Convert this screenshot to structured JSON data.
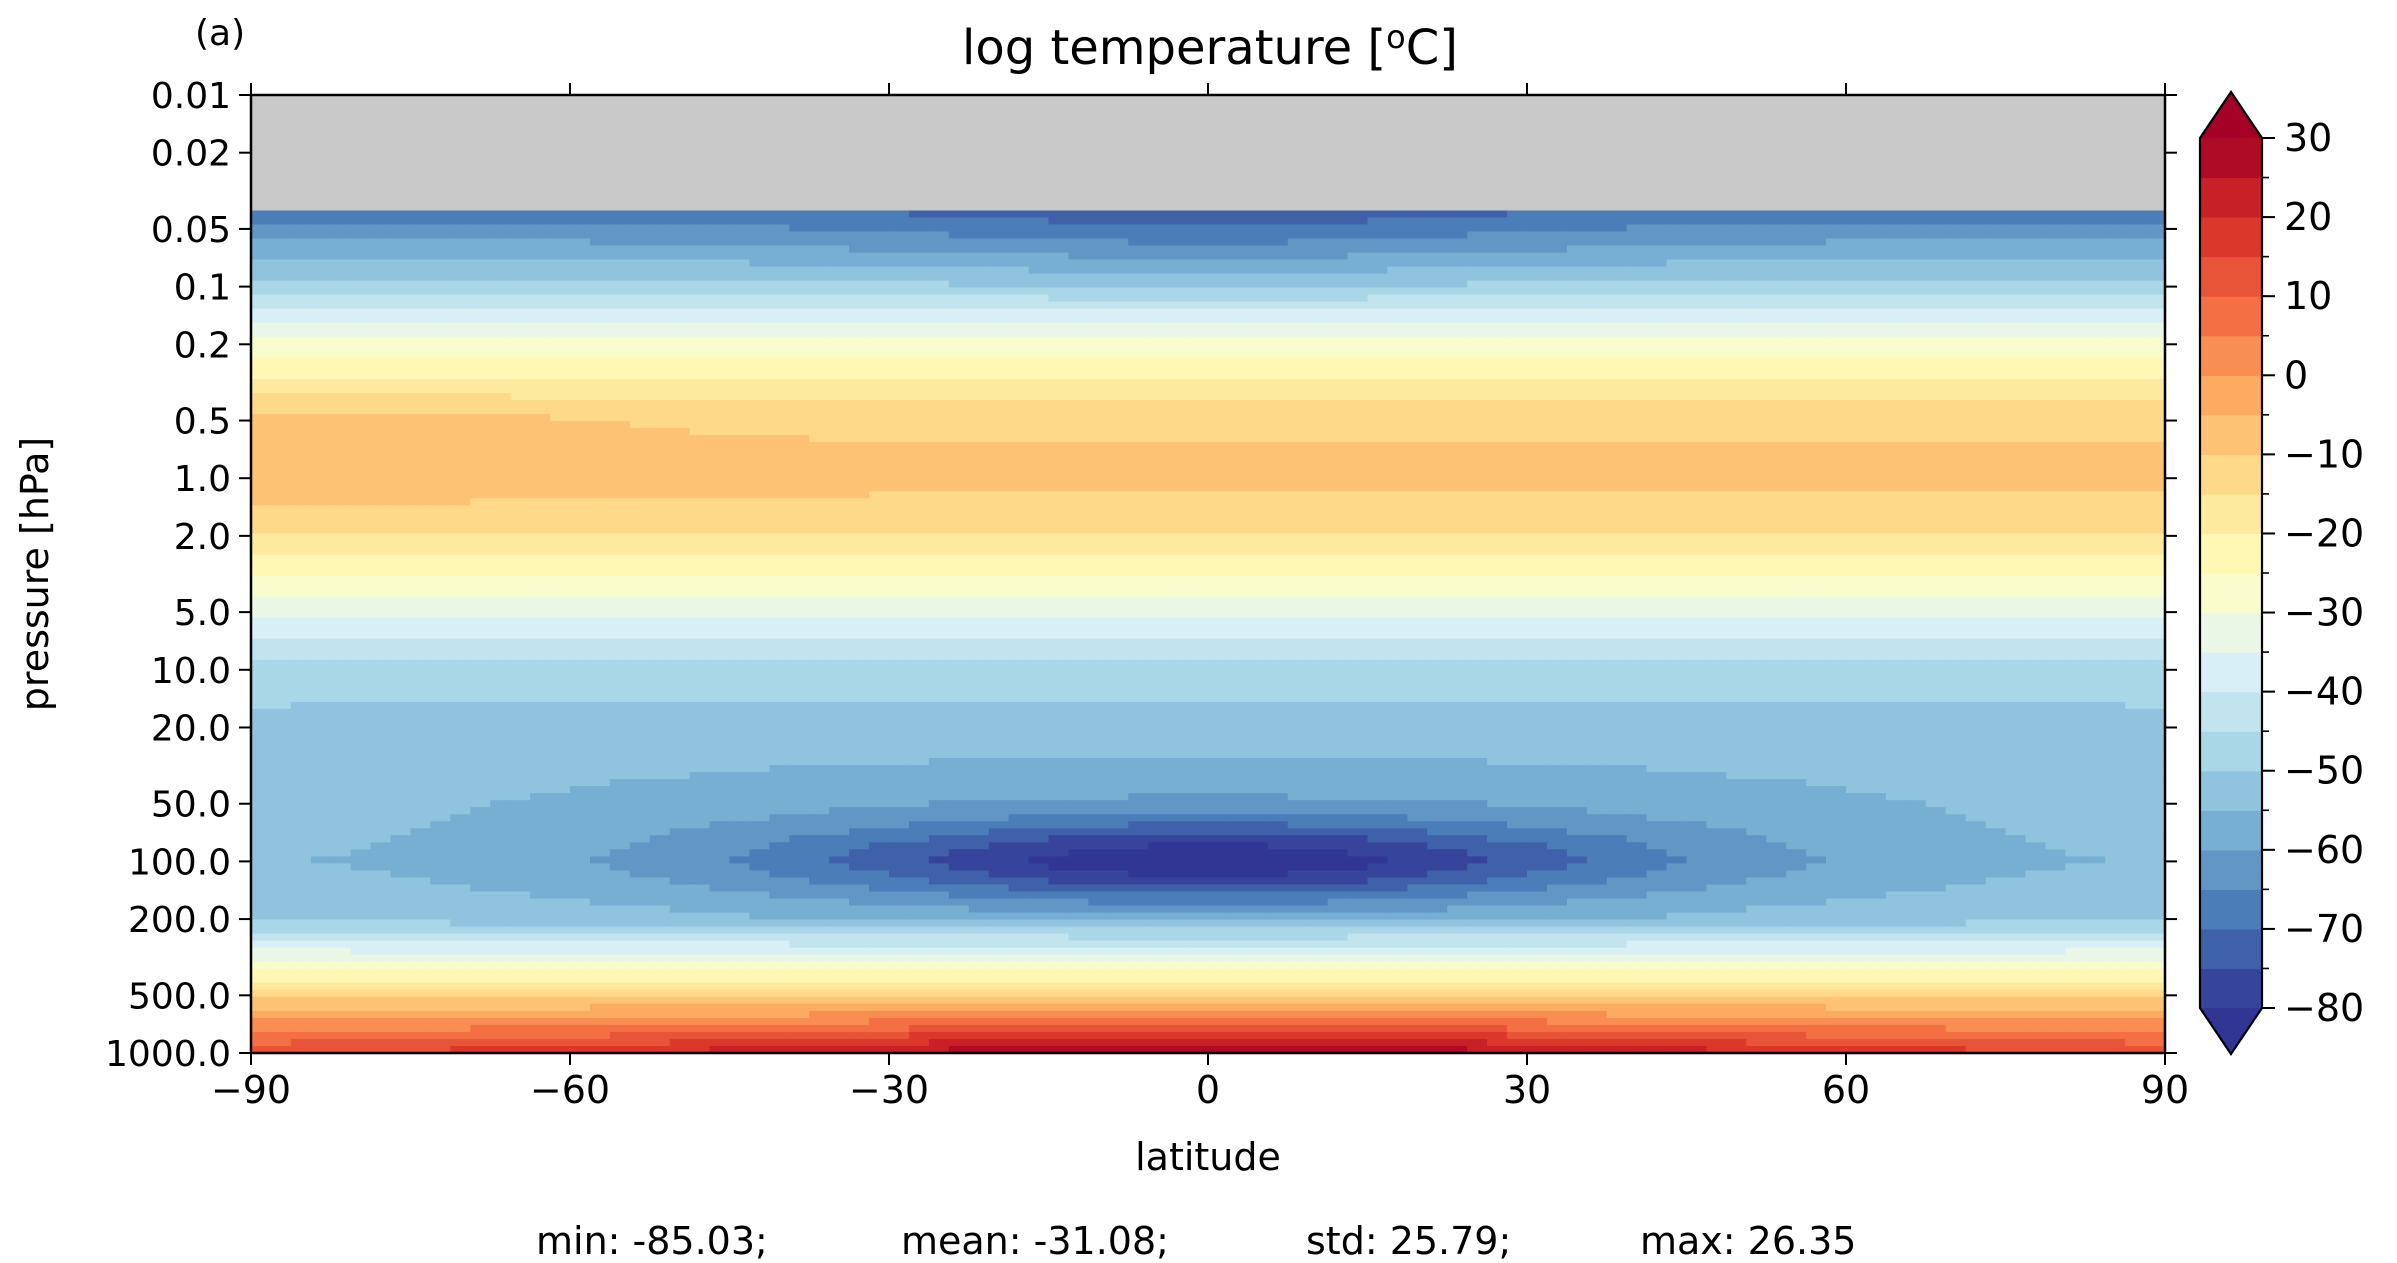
{
  "panel_label": "(a)",
  "chart_data": {
    "type": "heatmap",
    "title": "log temperature [",
    "title_sup": "o",
    "title_tail": "C]",
    "xlabel": "latitude",
    "ylabel": "pressure [hPa]",
    "xlim": [
      -90,
      90
    ],
    "ylim": [
      1000.0,
      0.01
    ],
    "y_scale": "log",
    "x_ticks": [
      -90,
      -60,
      -30,
      0,
      30,
      60,
      90
    ],
    "x_tick_labels": [
      "−90",
      "−60",
      "−30",
      "0",
      "30",
      "60",
      "90"
    ],
    "y_ticks": [
      0.01,
      0.02,
      0.05,
      0.1,
      0.2,
      0.5,
      1.0,
      2.0,
      5.0,
      10.0,
      20.0,
      50.0,
      100.0,
      200.0,
      500.0,
      1000.0
    ],
    "y_tick_labels": [
      "0.01",
      "0.02",
      "0.05",
      "0.1",
      "0.2",
      "0.5",
      "1.0",
      "2.0",
      "5.0",
      "10.0",
      "20.0",
      "50.0",
      "100.0",
      "200.0",
      "500.0",
      "1000.0"
    ],
    "missing_data_top_pressure": 0.04,
    "missing_color": "#c8c8c8",
    "colorbar": {
      "colormap": "RdYlBu_r",
      "min": -80,
      "max": 30,
      "step": 5,
      "extend": "both",
      "ticks": [
        30,
        20,
        10,
        0,
        -10,
        -20,
        -30,
        -40,
        -50,
        -60,
        -70,
        -80
      ],
      "tick_labels": [
        "30",
        "20",
        "10",
        "0",
        "−10",
        "−20",
        "−30",
        "−40",
        "−50",
        "−60",
        "−70",
        "−80"
      ],
      "color_stops": [
        "#313695",
        "#4575b4",
        "#74add1",
        "#abd9e9",
        "#e0f3f8",
        "#ffffbf",
        "#fee090",
        "#fdae61",
        "#f46d43",
        "#d73027",
        "#a50026"
      ]
    },
    "profile_pressure": [
      0.04,
      0.05,
      0.1,
      0.2,
      0.5,
      1.0,
      2.0,
      5.0,
      10.0,
      20.0,
      50.0,
      100.0,
      200.0,
      500.0,
      1000.0
    ],
    "profile_temperature": [
      -68,
      -63,
      -48,
      -28,
      -11,
      -8,
      -15,
      -33,
      -47,
      -53,
      -58,
      -60,
      -54,
      -12,
      24
    ]
  },
  "stats": {
    "min": "min: -85.03;",
    "mean": "mean: -31.08;",
    "std": "std: 25.79;",
    "max": "max: 26.35"
  }
}
